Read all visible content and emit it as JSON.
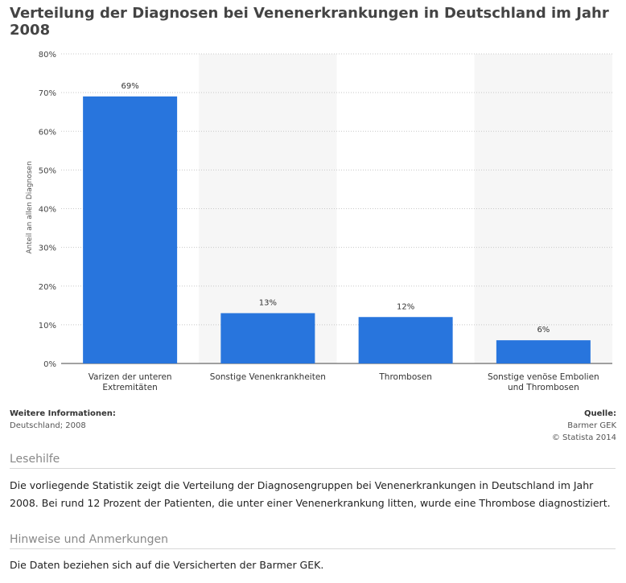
{
  "title": "Verteilung der Diagnosen bei Venenerkrankungen in Deutschland im Jahr 2008",
  "chart_data": {
    "type": "bar",
    "categories": [
      [
        "Varizen der unteren",
        "Extremitäten"
      ],
      [
        "Sonstige Venenkrankheiten"
      ],
      [
        "Thrombosen"
      ],
      [
        "Sonstige venöse Embolien",
        "und Thrombosen"
      ]
    ],
    "values": [
      69,
      13,
      12,
      6
    ],
    "value_labels": [
      "69%",
      "13%",
      "12%",
      "6%"
    ],
    "ylabel": "Anteil an allen Diagnosen",
    "ylim": [
      0,
      80
    ],
    "yticks": [
      0,
      10,
      20,
      30,
      40,
      50,
      60,
      70,
      80
    ],
    "ytick_labels": [
      "0%",
      "10%",
      "20%",
      "30%",
      "40%",
      "50%",
      "60%",
      "70%",
      "80%"
    ],
    "bar_color": "#2875dd",
    "grid": true
  },
  "info": {
    "left_heading": "Weitere Informationen:",
    "left_text": "Deutschland; 2008",
    "right_heading": "Quelle:",
    "right_source": "Barmer GEK",
    "right_copyright": "© Statista 2014"
  },
  "lesehilfe": {
    "heading": "Lesehilfe",
    "text": "Die vorliegende Statistik zeigt die Verteilung der Diagnosengruppen bei Venenerkrankungen in Deutschland im Jahr 2008. Bei rund 12 Prozent der Patienten, die unter einer Venenerkrankung litten, wurde eine Thrombose diagnostiziert."
  },
  "hinweise": {
    "heading": "Hinweise und Anmerkungen",
    "text": "Die Daten beziehen sich auf die Versicherten der Barmer GEK."
  }
}
